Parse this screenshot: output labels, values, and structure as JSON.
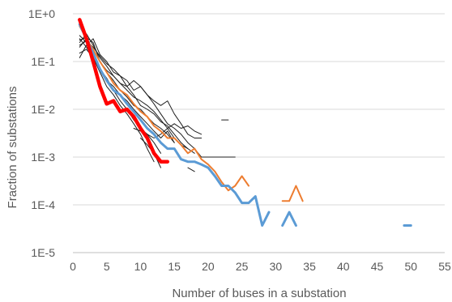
{
  "chart_data": {
    "type": "line",
    "title": "",
    "xlabel": "Number of buses in a substation",
    "ylabel": "Fraction of substations",
    "xlim": [
      0,
      55
    ],
    "ylim": [
      1e-05,
      1
    ],
    "y_scale": "log",
    "grid": "horizontal",
    "legend": "none",
    "x_ticks": [
      0,
      5,
      10,
      15,
      20,
      25,
      30,
      35,
      40,
      45,
      50,
      55
    ],
    "x_tick_labels": [
      "0",
      "5",
      "10",
      "15",
      "20",
      "25",
      "30",
      "35",
      "40",
      "45",
      "50",
      "55"
    ],
    "y_ticks": [
      1,
      0.1,
      0.01,
      0.001,
      0.0001,
      1e-05
    ],
    "y_tick_labels": [
      "1E+0",
      "1E-1",
      "1E-2",
      "1E-3",
      "1E-4",
      "1E-5"
    ],
    "series": [
      {
        "color": "#1f1f1f",
        "width": 1,
        "points": [
          [
            1,
            0.25
          ],
          [
            2,
            0.38
          ],
          [
            3,
            0.22
          ],
          [
            4,
            0.12
          ],
          [
            5,
            0.08
          ],
          [
            6,
            0.05
          ],
          [
            7,
            0.035
          ],
          [
            8,
            0.025
          ],
          [
            9,
            0.018
          ],
          [
            10,
            0.015
          ],
          [
            11,
            0.012
          ],
          [
            12,
            0.009
          ],
          [
            13,
            0.006
          ],
          [
            14,
            0.004
          ],
          [
            15,
            0.0025
          ],
          [
            16,
            0.0018
          ],
          [
            17,
            0.0015
          ],
          [
            18,
            0.0012
          ]
        ]
      },
      {
        "color": "#1f1f1f",
        "width": 1,
        "points": [
          [
            1,
            0.35
          ],
          [
            2,
            0.25
          ],
          [
            3,
            0.15
          ],
          [
            4,
            0.07
          ],
          [
            5,
            0.045
          ],
          [
            6,
            0.025
          ],
          [
            7,
            0.015
          ],
          [
            8,
            0.01
          ],
          [
            9,
            0.006
          ],
          [
            10,
            0.004
          ],
          [
            11,
            0.003
          ],
          [
            12,
            0.002
          ],
          [
            13,
            0.0012
          ]
        ]
      },
      {
        "color": "#1f1f1f",
        "width": 1,
        "points": [
          [
            1,
            0.2
          ],
          [
            2,
            0.3
          ],
          [
            3,
            0.18
          ],
          [
            4,
            0.1
          ],
          [
            5,
            0.06
          ],
          [
            6,
            0.04
          ],
          [
            7,
            0.025
          ],
          [
            8,
            0.018
          ],
          [
            9,
            0.012
          ],
          [
            10,
            0.01
          ],
          [
            11,
            0.007
          ],
          [
            12,
            0.005
          ],
          [
            13,
            0.004
          ],
          [
            14,
            0.003
          ],
          [
            15,
            0.002
          ]
        ]
      },
      {
        "color": "#1f1f1f",
        "width": 1,
        "points": [
          [
            1,
            0.12
          ],
          [
            2,
            0.22
          ],
          [
            3,
            0.3
          ],
          [
            4,
            0.14
          ],
          [
            5,
            0.1
          ],
          [
            6,
            0.06
          ],
          [
            7,
            0.05
          ],
          [
            8,
            0.03
          ],
          [
            9,
            0.02
          ],
          [
            10,
            0.012
          ],
          [
            11,
            0.01
          ],
          [
            12,
            0.008
          ],
          [
            13,
            0.0055
          ],
          [
            14,
            0.0045
          ],
          [
            15,
            0.003
          ],
          [
            16,
            0.002
          ],
          [
            17,
            0.0015
          ]
        ]
      },
      {
        "color": "#1f1f1f",
        "width": 1,
        "points": [
          [
            1,
            0.3
          ],
          [
            2,
            0.2
          ],
          [
            3,
            0.12
          ],
          [
            4,
            0.06
          ],
          [
            5,
            0.03
          ],
          [
            6,
            0.02
          ],
          [
            7,
            0.012
          ],
          [
            8,
            0.008
          ],
          [
            9,
            0.005
          ],
          [
            10,
            0.003
          ],
          [
            11,
            0.0015
          ],
          [
            12,
            0.0008
          ]
        ]
      },
      {
        "color": "#1f1f1f",
        "width": 1,
        "points": [
          [
            1,
            0.28
          ],
          [
            2,
            0.32
          ],
          [
            3,
            0.25
          ],
          [
            4,
            0.1
          ],
          [
            5,
            0.065
          ],
          [
            6,
            0.05
          ],
          [
            7,
            0.035
          ],
          [
            8,
            0.03
          ],
          [
            9,
            0.04
          ],
          [
            10,
            0.03
          ],
          [
            11,
            0.02
          ],
          [
            12,
            0.015
          ],
          [
            13,
            0.012
          ],
          [
            14,
            0.015
          ],
          [
            15,
            0.008
          ],
          [
            16,
            0.005
          ],
          [
            17,
            0.003
          ],
          [
            18,
            0.0025
          ],
          [
            19,
            0.0025
          ]
        ]
      },
      {
        "color": "#1f1f1f",
        "width": 1,
        "points": [
          [
            1,
            0.22
          ],
          [
            2,
            0.27
          ],
          [
            3,
            0.2
          ],
          [
            4,
            0.13
          ],
          [
            5,
            0.09
          ],
          [
            6,
            0.07
          ],
          [
            7,
            0.05
          ],
          [
            8,
            0.04
          ],
          [
            9,
            0.025
          ],
          [
            10,
            0.03
          ],
          [
            11,
            0.02
          ],
          [
            12,
            0.013
          ],
          [
            13,
            0.008
          ],
          [
            14,
            0.005
          ],
          [
            15,
            0.004
          ],
          [
            16,
            0.003
          ],
          [
            17,
            0.002
          ],
          [
            18,
            0.0015
          ],
          [
            19,
            0.001
          ],
          [
            20,
            0.001
          ],
          [
            21,
            0.001
          ],
          [
            22,
            0.001
          ],
          [
            23,
            0.001
          ],
          [
            24,
            0.001
          ]
        ]
      },
      {
        "color": "#1f1f1f",
        "width": 1,
        "points": [
          [
            1,
            0.15
          ],
          [
            2,
            0.18
          ],
          [
            3,
            0.12
          ],
          [
            4,
            0.07
          ],
          [
            5,
            0.04
          ],
          [
            6,
            0.03
          ],
          [
            7,
            0.02
          ],
          [
            8,
            0.015
          ],
          [
            9,
            0.01
          ],
          [
            10,
            0.007
          ],
          [
            11,
            0.005
          ],
          [
            12,
            0.0035
          ],
          [
            13,
            0.0025
          ],
          [
            14,
            0.0035
          ],
          [
            15,
            0.002
          ]
        ]
      },
      {
        "color": "#1f1f1f",
        "width": 1,
        "points": [
          [
            9,
            0.004
          ],
          [
            10,
            0.0035
          ],
          [
            11,
            0.003
          ],
          [
            12,
            0.0025
          ],
          [
            13,
            0.003
          ],
          [
            14,
            0.004
          ],
          [
            15,
            0.005
          ],
          [
            16,
            0.004
          ],
          [
            17,
            0.0045
          ],
          [
            18,
            0.0035
          ],
          [
            19,
            0.003
          ]
        ]
      },
      {
        "color": "#1f1f1f",
        "width": 1,
        "points": [
          [
            10,
            0.0025
          ],
          [
            11,
            0.0018
          ],
          [
            12,
            0.0012
          ],
          [
            13,
            0.0006
          ]
        ]
      },
      {
        "color": "#1f1f1f",
        "width": 1,
        "points": [
          [
            17,
            0.0006
          ],
          [
            18,
            0.0005
          ]
        ]
      },
      {
        "color": "#1f1f1f",
        "width": 1,
        "points": [
          [
            22,
            0.006
          ],
          [
            23,
            0.006
          ]
        ]
      },
      {
        "color": "#ed7d31",
        "width": 2,
        "points": [
          [
            1,
            0.55
          ],
          [
            2,
            0.3
          ],
          [
            3,
            0.18
          ],
          [
            4,
            0.1
          ],
          [
            5,
            0.06
          ],
          [
            6,
            0.035
          ],
          [
            7,
            0.025
          ],
          [
            8,
            0.02
          ],
          [
            9,
            0.013
          ],
          [
            10,
            0.009
          ],
          [
            11,
            0.007
          ],
          [
            12,
            0.0045
          ],
          [
            13,
            0.0035
          ],
          [
            14,
            0.0025
          ],
          [
            15,
            0.0025
          ],
          [
            16,
            0.0018
          ],
          [
            17,
            0.0012
          ],
          [
            18,
            0.0015
          ],
          [
            19,
            0.0009
          ],
          [
            20,
            0.0007
          ],
          [
            21,
            0.0005
          ],
          [
            22,
            0.0003
          ],
          [
            23,
            0.0002
          ],
          [
            24,
            0.00025
          ],
          [
            25,
            0.0004
          ],
          [
            26,
            0.00025
          ]
        ]
      },
      {
        "color": "#ed7d31",
        "width": 2,
        "points": [
          [
            31,
            0.00012
          ],
          [
            32,
            0.00012
          ],
          [
            33,
            0.00025
          ],
          [
            34,
            0.00012
          ]
        ]
      },
      {
        "color": "#5b9bd5",
        "width": 3,
        "points": [
          [
            1,
            0.6
          ],
          [
            2,
            0.3
          ],
          [
            3,
            0.15
          ],
          [
            4,
            0.07
          ],
          [
            5,
            0.04
          ],
          [
            6,
            0.025
          ],
          [
            7,
            0.02
          ],
          [
            8,
            0.013
          ],
          [
            9,
            0.009
          ],
          [
            10,
            0.006
          ],
          [
            11,
            0.004
          ],
          [
            12,
            0.003
          ],
          [
            13,
            0.002
          ],
          [
            14,
            0.0015
          ],
          [
            15,
            0.0015
          ],
          [
            16,
            0.0009
          ],
          [
            17,
            0.0008
          ],
          [
            18,
            0.0008
          ],
          [
            19,
            0.0007
          ],
          [
            20,
            0.0006
          ],
          [
            21,
            0.0004
          ],
          [
            22,
            0.00025
          ],
          [
            23,
            0.00025
          ],
          [
            24,
            0.00018
          ],
          [
            25,
            0.00011
          ],
          [
            26,
            0.00011
          ],
          [
            27,
            0.00015
          ],
          [
            28,
            3.7e-05
          ],
          [
            29,
            7e-05
          ]
        ]
      },
      {
        "color": "#5b9bd5",
        "width": 3,
        "points": [
          [
            31,
            3.7e-05
          ],
          [
            32,
            7e-05
          ],
          [
            33,
            3.7e-05
          ]
        ]
      },
      {
        "color": "#5b9bd5",
        "width": 3,
        "points": [
          [
            49,
            3.7e-05
          ],
          [
            50,
            3.7e-05
          ]
        ]
      },
      {
        "color": "#ff0000",
        "width": 4.5,
        "points": [
          [
            1,
            0.75
          ],
          [
            2,
            0.3
          ],
          [
            3,
            0.1
          ],
          [
            4,
            0.03
          ],
          [
            5,
            0.013
          ],
          [
            6,
            0.015
          ],
          [
            7,
            0.009
          ],
          [
            8,
            0.01
          ],
          [
            9,
            0.007
          ],
          [
            10,
            0.004
          ],
          [
            11,
            0.0025
          ],
          [
            12,
            0.0012
          ],
          [
            13,
            0.0008
          ],
          [
            14,
            0.0008
          ]
        ]
      }
    ]
  }
}
